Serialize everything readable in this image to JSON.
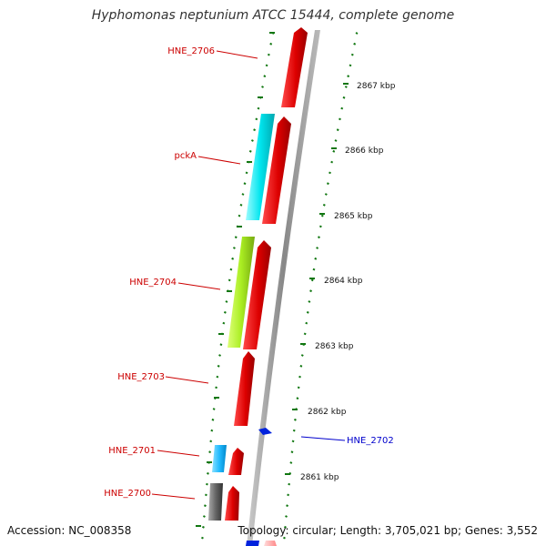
{
  "title": "Hyphomonas neptunium ATCC 15444, complete genome",
  "genes": [
    {
      "id": "HNE_2706",
      "label": "HNE_2706",
      "color": "#cc0000",
      "strand": "reverse-side"
    },
    {
      "id": "pckA",
      "label": "pckA",
      "color": "#cc0000",
      "strand": "reverse-side"
    },
    {
      "id": "HNE_2704",
      "label": "HNE_2704",
      "color": "#cc0000",
      "strand": "reverse-side"
    },
    {
      "id": "HNE_2703",
      "label": "HNE_2703",
      "color": "#cc0000",
      "strand": "reverse-side"
    },
    {
      "id": "HNE_2702",
      "label": "HNE_2702",
      "color": "#0000cc",
      "strand": "forward-side"
    },
    {
      "id": "HNE_2701",
      "label": "HNE_2701",
      "color": "#cc0000",
      "strand": "reverse-side"
    },
    {
      "id": "HNE_2700",
      "label": "HNE_2700",
      "color": "#cc0000",
      "strand": "reverse-side"
    }
  ],
  "kbp_ticks": [
    "2867 kbp",
    "2866 kbp",
    "2865 kbp",
    "2864 kbp",
    "2863 kbp",
    "2862 kbp",
    "2861 kbp"
  ],
  "colors": {
    "cds": "#e00000",
    "cyan_feature": "#00e5ee",
    "green_feature": "#aaee22",
    "light_blue_feature": "#22bbff",
    "gray_feature": "#666666",
    "forward_feature": "#0022dd",
    "backbone": "#999999",
    "tick": "#117711"
  },
  "footer": {
    "accession": "Accession: NC_008358",
    "topology": "Topology: circular; Length: 3,705,021 bp; Genes: 3,552"
  }
}
